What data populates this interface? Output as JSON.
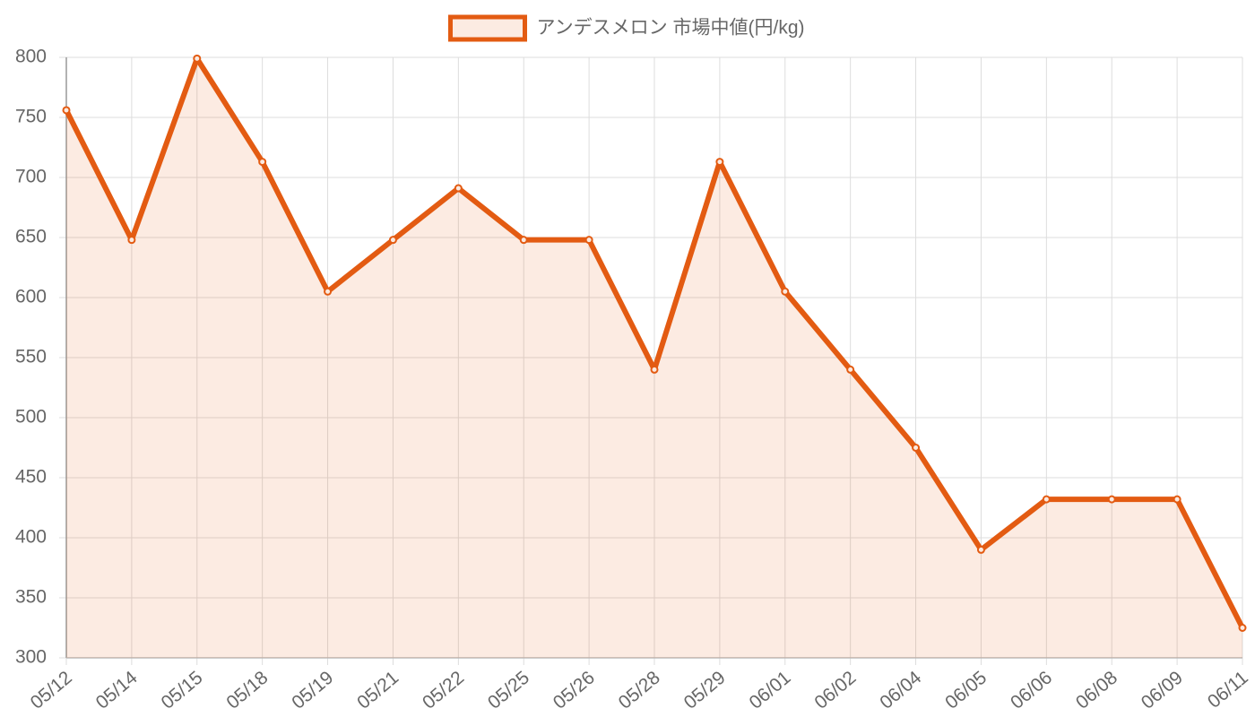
{
  "chart_data": {
    "type": "line",
    "categories": [
      "05/12",
      "05/14",
      "05/15",
      "05/18",
      "05/19",
      "05/21",
      "05/22",
      "05/25",
      "05/26",
      "05/28",
      "05/29",
      "06/01",
      "06/02",
      "06/04",
      "06/05",
      "06/06",
      "06/08",
      "06/09",
      "06/11"
    ],
    "series": [
      {
        "name": "アンデスメロン 市場中値(円/kg)",
        "color": "#e35b12",
        "values": [
          756,
          648,
          799,
          713,
          605,
          648,
          691,
          648,
          648,
          540,
          713,
          605,
          540,
          475,
          390,
          432,
          432,
          432,
          325
        ]
      }
    ],
    "ylim": [
      300,
      800
    ],
    "yticks": [
      300,
      350,
      400,
      450,
      500,
      550,
      600,
      650,
      700,
      750,
      800
    ],
    "grid": true,
    "fill": true,
    "legend": "top"
  }
}
